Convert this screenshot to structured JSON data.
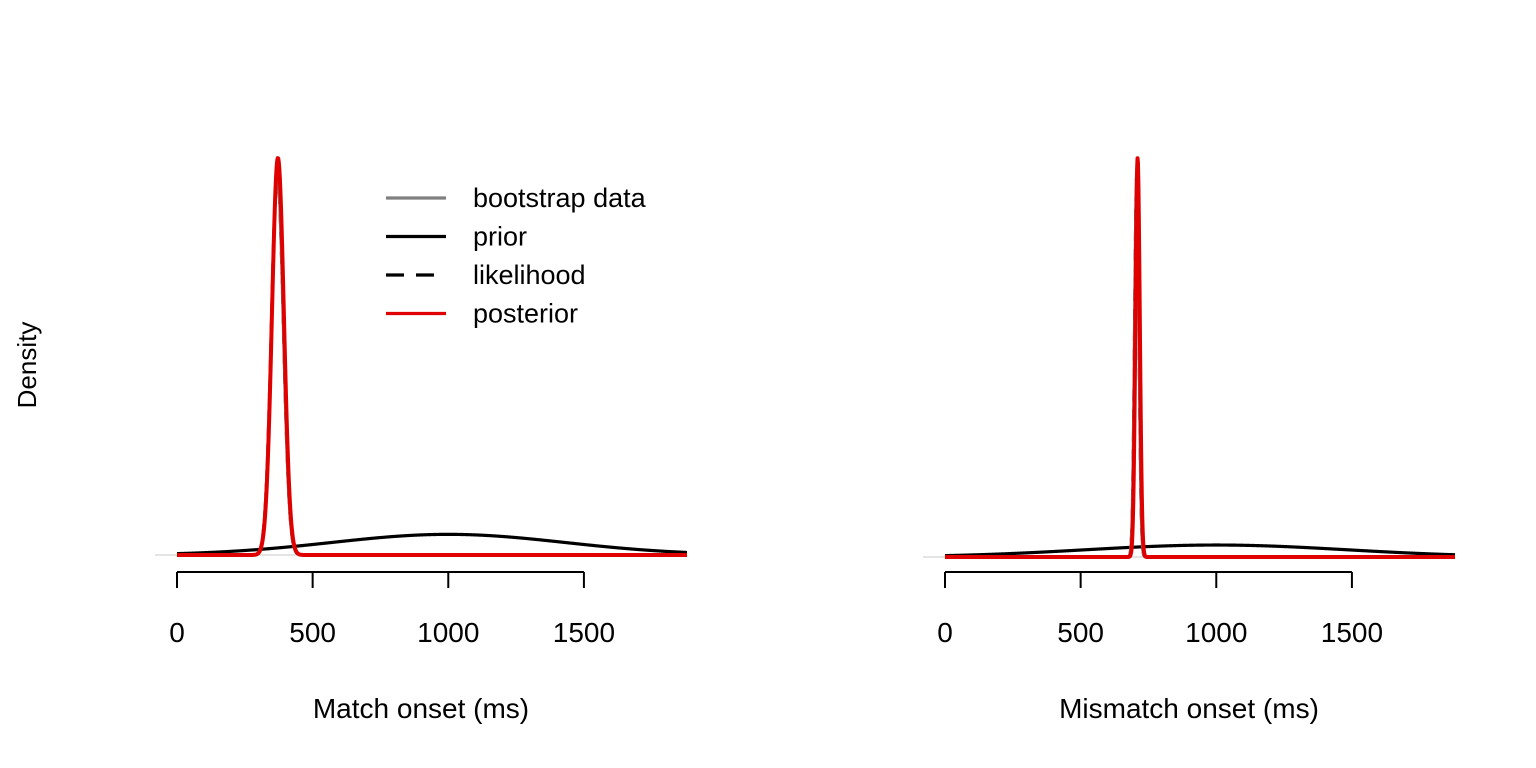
{
  "ylabel": "Density",
  "legend": {
    "placement": "top-right",
    "entries": [
      {
        "label": "bootstrap data",
        "color": "#808080",
        "dash": false
      },
      {
        "label": "prior",
        "color": "#000000",
        "dash": false
      },
      {
        "label": "likelihood",
        "color": "#000000",
        "dash": true
      },
      {
        "label": "posterior",
        "color": "#e00000",
        "dash": false
      }
    ]
  },
  "chart_data": [
    {
      "type": "line",
      "xlabel": "Match onset (ms)",
      "ylabel": "Density",
      "xlim": [
        0,
        1880
      ],
      "xticks": [
        0,
        500,
        1000,
        1500
      ],
      "xtick_labels": [
        "0",
        "500",
        "1000",
        "1500"
      ],
      "ylim": [
        0,
        1
      ],
      "y_axis_shown": false,
      "series": [
        {
          "name": "prior",
          "kind": "normal",
          "mean": 1000,
          "sd": 430,
          "peak": 0.052,
          "color": "#000000",
          "dash": false
        },
        {
          "name": "likelihood",
          "kind": "normal",
          "mean": 370,
          "sd": 22,
          "peak": 0.96,
          "color": "#000000",
          "dash": true
        },
        {
          "name": "bootstrap data",
          "kind": "normal",
          "mean": 370,
          "sd": 22,
          "peak": 0.96,
          "color": "#808080",
          "dash": false
        },
        {
          "name": "posterior",
          "kind": "normal",
          "mean": 372,
          "sd": 22,
          "peak": 1.0,
          "color": "#e00000",
          "dash": false
        }
      ]
    },
    {
      "type": "line",
      "xlabel": "Mismatch onset (ms)",
      "ylabel": "Density",
      "xlim": [
        0,
        1880
      ],
      "xticks": [
        0,
        500,
        1000,
        1500
      ],
      "xtick_labels": [
        "0",
        "500",
        "1000",
        "1500"
      ],
      "ylim": [
        0,
        1
      ],
      "y_axis_shown": false,
      "series": [
        {
          "name": "prior",
          "kind": "normal",
          "mean": 1000,
          "sd": 480,
          "peak": 0.03,
          "color": "#000000",
          "dash": false
        },
        {
          "name": "likelihood",
          "kind": "normal",
          "mean": 707,
          "sd": 8,
          "peak": 0.96,
          "color": "#000000",
          "dash": true
        },
        {
          "name": "bootstrap data",
          "kind": "normal",
          "mean": 707,
          "sd": 8,
          "peak": 0.96,
          "color": "#808080",
          "dash": false
        },
        {
          "name": "posterior",
          "kind": "normal",
          "mean": 710,
          "sd": 8,
          "peak": 1.0,
          "color": "#e00000",
          "dash": false
        }
      ]
    }
  ]
}
